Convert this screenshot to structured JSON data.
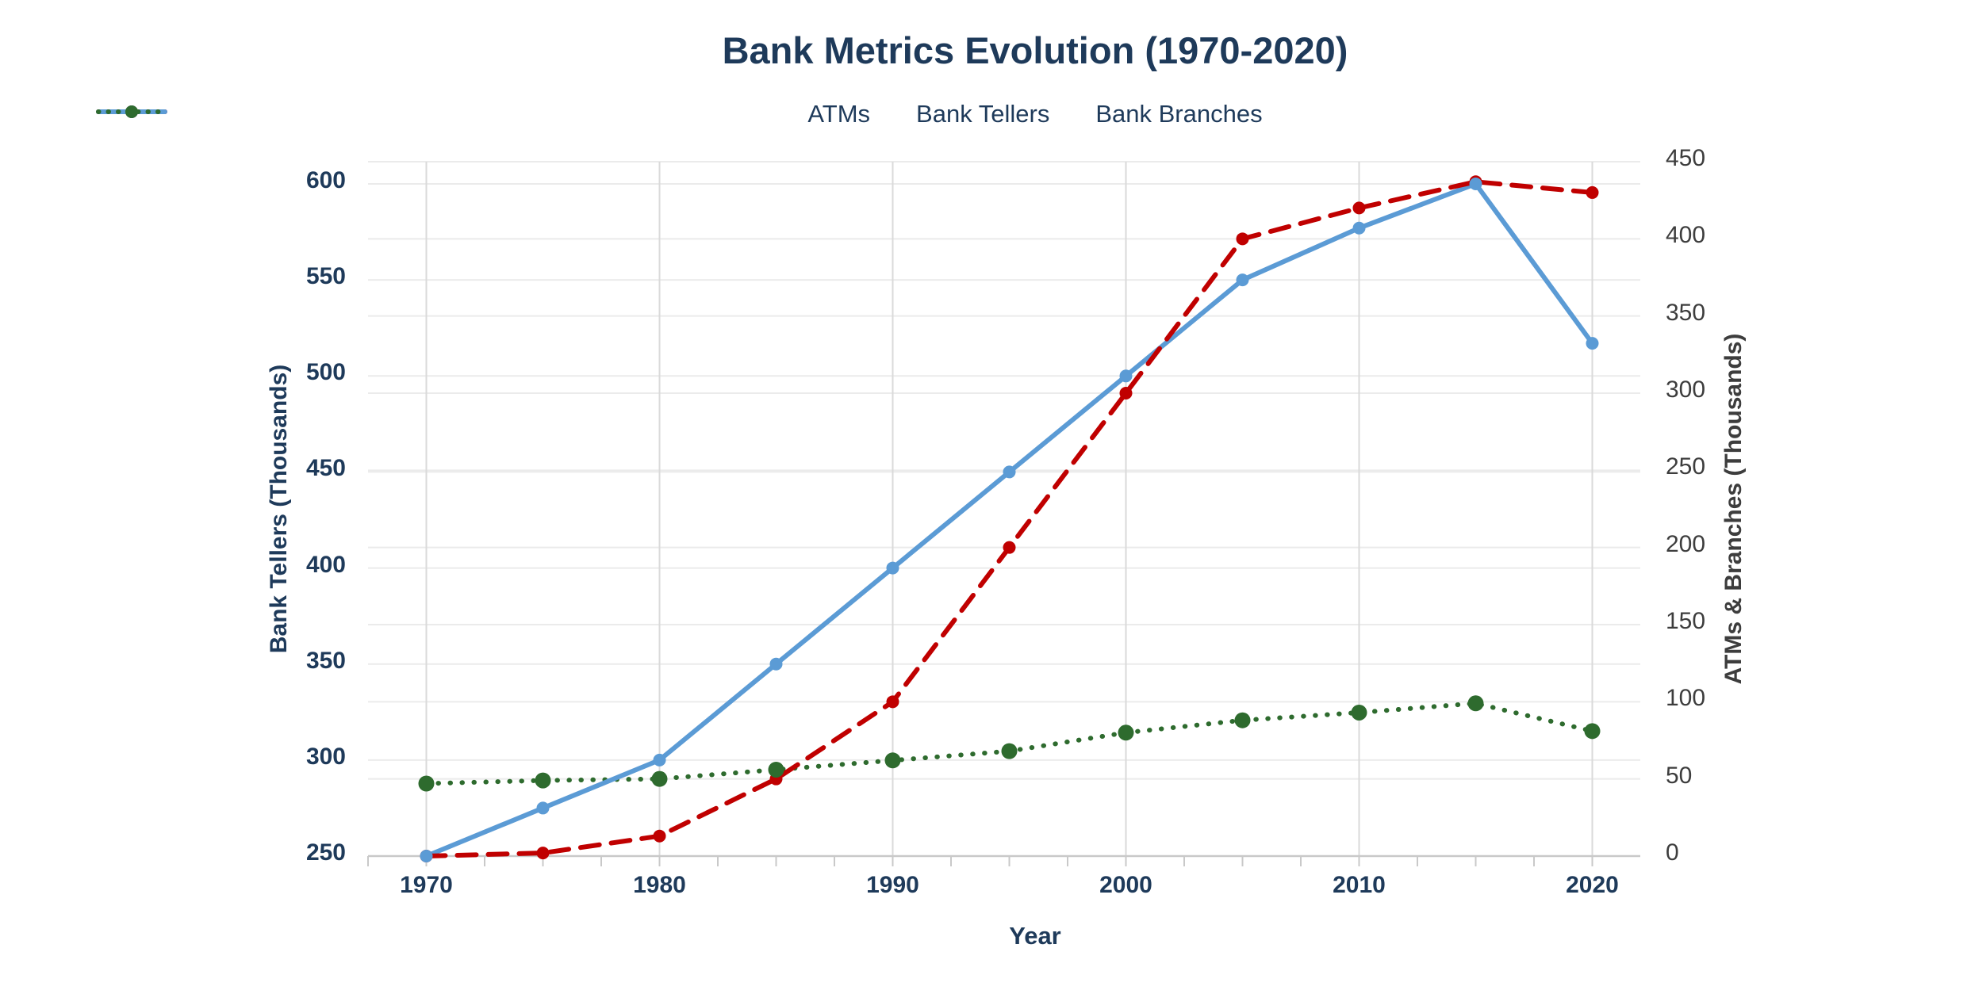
{
  "chart": {
    "title": "Bank Metrics Evolution (1970-2020)",
    "x_axis": {
      "label": "Year",
      "ticks": [
        1970,
        1980,
        1990,
        2000,
        2010,
        2020
      ]
    },
    "left_axis": {
      "label": "Bank Tellers (Thousands)",
      "min": 250,
      "max": 600,
      "ticks": [
        250,
        300,
        350,
        400,
        450,
        500,
        550,
        600
      ]
    },
    "right_axis": {
      "label": "ATMs & Branches (Thousands)",
      "min": 0,
      "max": 450,
      "ticks": [
        0,
        50,
        100,
        150,
        200,
        250,
        300,
        350,
        400,
        450
      ]
    },
    "legend": [
      {
        "label": "ATMs",
        "style": "dashed",
        "color": "#C00000"
      },
      {
        "label": "Bank Tellers",
        "style": "solid",
        "color": "#5B9BD5"
      },
      {
        "label": "Bank Branches",
        "style": "dotted",
        "color": "#2E6B2E"
      }
    ],
    "colors": {
      "title_text": "#1E3A5A",
      "right_text": "#3D3D3D",
      "grid_minor": "#EBEBEB",
      "grid_major": "#DADADA",
      "axis_line": "#C9C9C9",
      "background": "#FFFFFF"
    }
  },
  "chart_data": {
    "type": "line",
    "title": "Bank Metrics Evolution (1970-2020)",
    "xlabel": "Year",
    "ylabel_left": "Bank Tellers (Thousands)",
    "ylabel_right": "ATMs & Branches (Thousands)",
    "x": [
      1970,
      1975,
      1980,
      1985,
      1990,
      1995,
      2000,
      2005,
      2010,
      2015,
      2020
    ],
    "xlim": [
      1967.5,
      2022.5
    ],
    "ylim_left": [
      250,
      600
    ],
    "ylim_right": [
      0,
      450
    ],
    "grid": true,
    "legend_position": "top-center",
    "series": [
      {
        "name": "ATMs",
        "axis": "right",
        "color": "#C00000",
        "line_style": "dashed",
        "marker": "circle",
        "values": [
          0,
          2,
          13,
          50,
          100,
          200,
          300,
          400,
          420,
          437,
          430
        ]
      },
      {
        "name": "Bank Tellers",
        "axis": "left",
        "color": "#5B9BD5",
        "line_style": "solid",
        "marker": "circle",
        "values": [
          250,
          275,
          300,
          350,
          400,
          450,
          500,
          550,
          577,
          600,
          517
        ]
      },
      {
        "name": "Bank Branches",
        "axis": "right",
        "color": "#2E6B2E",
        "line_style": "dotted",
        "marker": "circle",
        "values": [
          47,
          49,
          50,
          56,
          62,
          68,
          80,
          88,
          93,
          99,
          81
        ]
      }
    ]
  }
}
